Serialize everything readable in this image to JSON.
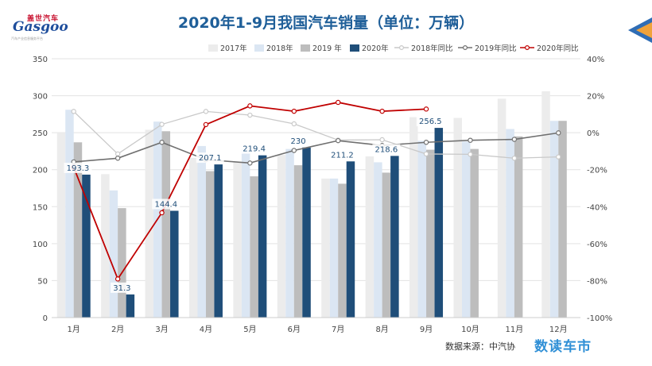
{
  "header": {
    "title": "2020年1-9月我国汽车销量（单位：万辆）",
    "logo_cn": "盖世汽车",
    "logo_en": "Gasgoo",
    "logo_sub": "汽车产业信息服务平台"
  },
  "footer": {
    "source": "数据来源：中汽协",
    "brand": "数读车市"
  },
  "colors": {
    "s2017": "#ececec",
    "s2018": "#dbe6f3",
    "s2019": "#bdbdbd",
    "s2020": "#1f4e79",
    "l2018": "#c9c9c9",
    "l2019": "#707070",
    "l2020": "#c00000"
  },
  "chart_data": {
    "type": "bar+line",
    "title": "2020年1-9月我国汽车销量（单位：万辆）",
    "categories": [
      "1月",
      "2月",
      "3月",
      "4月",
      "5月",
      "6月",
      "7月",
      "8月",
      "9月",
      "10月",
      "11月",
      "12月"
    ],
    "ylim_left": [
      0,
      350
    ],
    "yticks_left": [
      0,
      50,
      100,
      150,
      200,
      250,
      300,
      350
    ],
    "ylim_right": [
      -100,
      40
    ],
    "yticks_right": [
      -100,
      -80,
      -60,
      -40,
      -20,
      0,
      20,
      40
    ],
    "ytick_right_labels": [
      "-100%",
      "-80%",
      "-60%",
      "-40%",
      "-20%",
      "0%",
      "20%",
      "40%"
    ],
    "bar_series": [
      {
        "name": "2017年",
        "values": [
          250,
          194,
          254,
          216,
          210,
          220,
          188,
          218,
          271,
          270,
          296,
          306
        ]
      },
      {
        "name": "2018年",
        "values": [
          281,
          172,
          265,
          232,
          229,
          228,
          188,
          210,
          239,
          238,
          255,
          266
        ]
      },
      {
        "name": "2019 年",
        "values": [
          237,
          148,
          252,
          198,
          191,
          206,
          181,
          196,
          227,
          228,
          245,
          266
        ]
      },
      {
        "name": "2020年",
        "values": [
          193.3,
          31.3,
          144.4,
          207.1,
          219.4,
          230,
          211.2,
          218.6,
          256.5
        ]
      }
    ],
    "data_labels_2020": [
      "193.3",
      "31.3",
      "144.4",
      "207.1",
      "219.4",
      "230",
      "211.2",
      "218.6",
      "256.5"
    ],
    "line_series": [
      {
        "name": "2018年同比",
        "values": [
          11.5,
          -11.5,
          4.5,
          11.5,
          9.5,
          4.8,
          -4,
          -3.8,
          -11.5,
          -11.7,
          -13.8,
          -13.1
        ]
      },
      {
        "name": "2019年同比",
        "values": [
          -15.8,
          -13.8,
          -5.2,
          -14.6,
          -16.4,
          -9.6,
          -4.3,
          -6.9,
          -5.2,
          -4.1,
          -3.6,
          -0.1
        ]
      },
      {
        "name": "2020年同比",
        "values": [
          -18.7,
          -79.1,
          -43.3,
          4.4,
          14.5,
          11.6,
          16.4,
          11.6,
          12.8
        ]
      }
    ]
  }
}
